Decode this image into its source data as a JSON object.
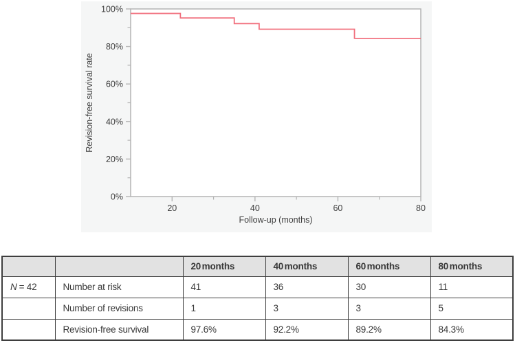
{
  "colors": {
    "curve": "#f1707e",
    "frame": "#b4b4b4",
    "axis_text": "#3f3f3f",
    "figure_bg": "#f5f6f6",
    "plot_bg": "#ffffff",
    "table_border": "#3e3e3e",
    "table_header_bg": "#e2e2e2"
  },
  "chart_data": {
    "type": "line",
    "subtype": "kaplan-meier-step",
    "title": "",
    "xlabel": "Follow-up (months)",
    "ylabel": "Revision-free survival rate",
    "xlim": [
      10,
      80
    ],
    "ylim": [
      0,
      100
    ],
    "x_major_ticks": [
      20,
      40,
      60,
      80
    ],
    "x_minor_ticks": [
      30,
      50,
      70
    ],
    "y_major_ticks": [
      0,
      20,
      40,
      60,
      80,
      100
    ],
    "y_minor_ticks": [
      10,
      30,
      50,
      70,
      90
    ],
    "y_major_tick_labels": [
      "0%",
      "20%",
      "40%",
      "60%",
      "80%",
      "100%"
    ],
    "grid": false,
    "legend": "none",
    "series": [
      {
        "name": "Revision-free survival",
        "color": "#f1707e",
        "step_mode": "after",
        "points": [
          {
            "x": 10,
            "y": 97.6
          },
          {
            "x": 22,
            "y": 95.2
          },
          {
            "x": 35,
            "y": 92.2
          },
          {
            "x": 41,
            "y": 89.2
          },
          {
            "x": 64,
            "y": 84.3
          },
          {
            "x": 80,
            "y": 84.3
          }
        ]
      }
    ]
  },
  "table": {
    "col_headers": [
      "",
      "",
      "20 months",
      "40 months",
      "60 months",
      "80 months"
    ],
    "n_label": "N",
    "n_value": "= 42",
    "rows": [
      {
        "label": "Number at risk",
        "values": [
          "41",
          "36",
          "30",
          "11"
        ]
      },
      {
        "label": "Number of revisions",
        "values": [
          "1",
          "3",
          "3",
          "5"
        ]
      },
      {
        "label": "Revision-free survival",
        "values": [
          "97.6%",
          "92.2%",
          "89.2%",
          "84.3%"
        ]
      }
    ]
  }
}
